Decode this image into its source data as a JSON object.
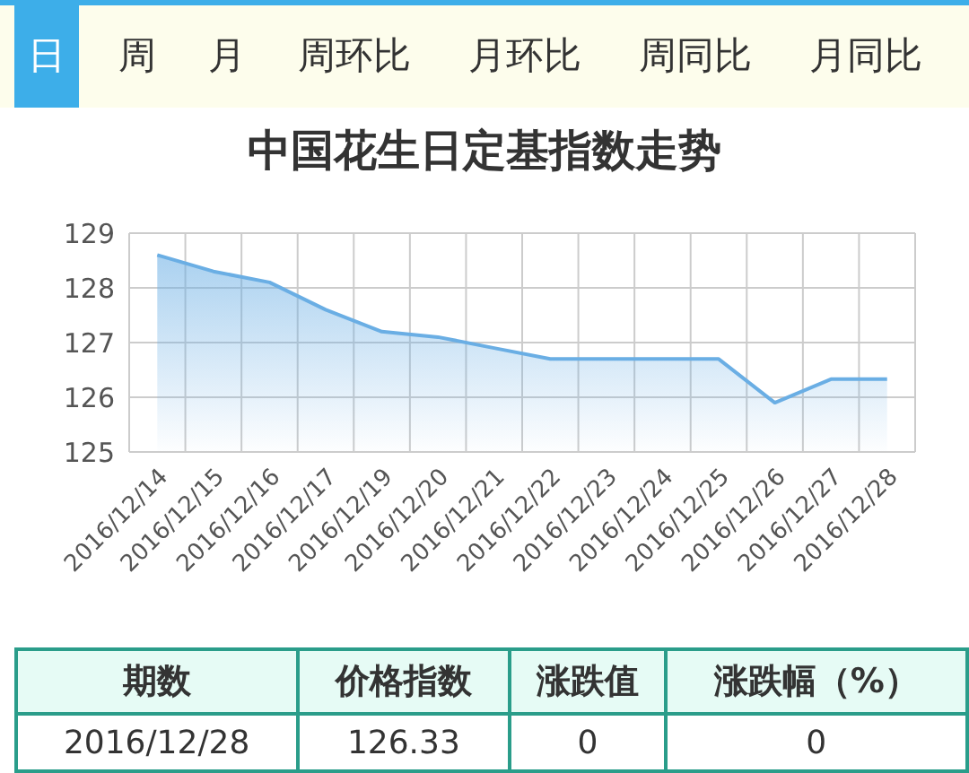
{
  "chart_data": {
    "type": "area",
    "title": "中国花生日定基指数走势",
    "categories": [
      "2016/12/14",
      "2016/12/15",
      "2016/12/16",
      "2016/12/17",
      "2016/12/19",
      "2016/12/20",
      "2016/12/21",
      "2016/12/22",
      "2016/12/23",
      "2016/12/24",
      "2016/12/25",
      "2016/12/26",
      "2016/12/27",
      "2016/12/28"
    ],
    "series": [
      {
        "color": "#6aaee4",
        "values": [
          128.6,
          128.3,
          128.1,
          127.6,
          127.2,
          127.1,
          126.9,
          126.7,
          126.7,
          126.7,
          126.7,
          125.9,
          126.33,
          126.33
        ]
      }
    ],
    "ylim": [
      125,
      129
    ],
    "yticks": [
      125,
      126,
      127,
      128,
      129
    ],
    "grid": true,
    "annotations": [
      "日",
      "周",
      "月",
      "周环比",
      "月环比",
      "周同比",
      "月同比",
      "期数",
      "价格指数",
      "涨跌值",
      "涨跌幅（%）",
      "2016/12/28",
      "126.33",
      "0",
      "0"
    ]
  }
}
